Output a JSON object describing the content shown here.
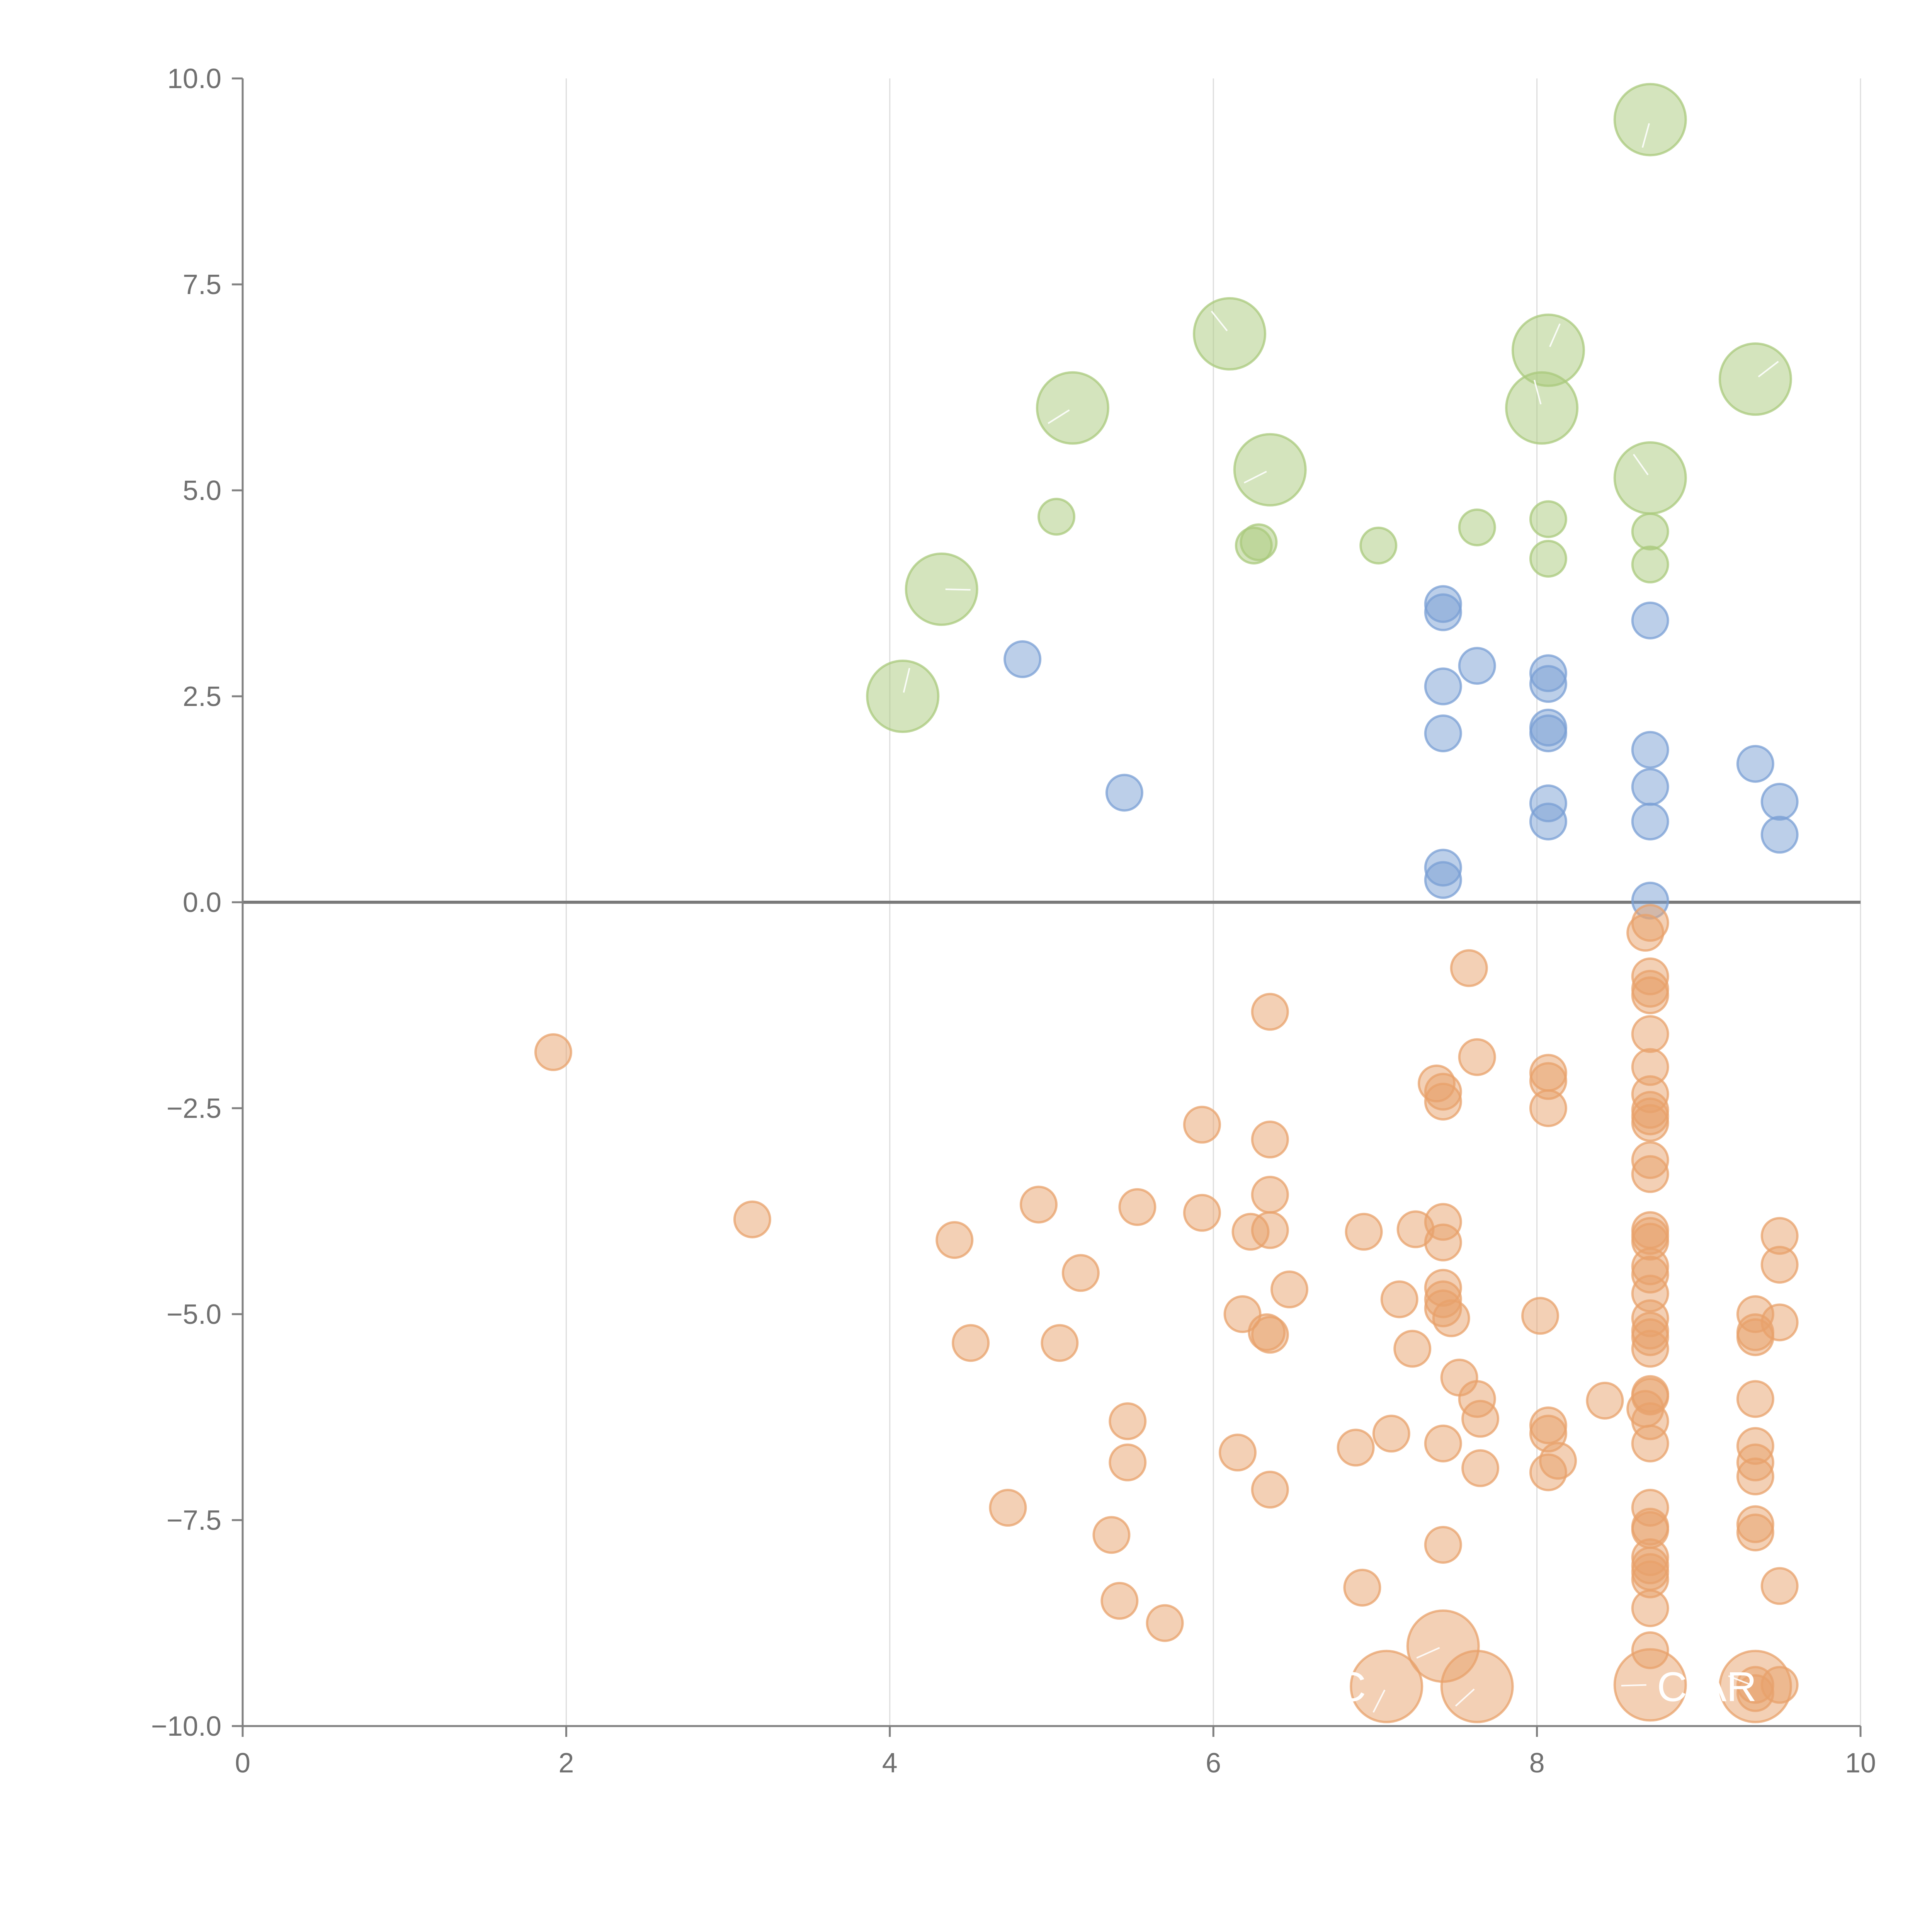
{
  "chart_data": {
    "type": "scatter",
    "title": "",
    "xlabel": "",
    "ylabel": "",
    "xlim": [
      0,
      10
    ],
    "ylim": [
      -10,
      10
    ],
    "x_ticks": [
      "0",
      "2",
      "4",
      "6",
      "8",
      "10"
    ],
    "y_ticks": [
      "10.0",
      "7.5",
      "5.0",
      "2.5",
      "0.0",
      "−2.5",
      "−5.0",
      "−7.5",
      "−10.0"
    ],
    "x_grid": true,
    "y_grid": false,
    "zero_line": true,
    "colors": {
      "green": "#a9c97c",
      "blue": "#7a9fd4",
      "orange": "#e8a26b"
    },
    "series": [
      {
        "color": "#a9c97c",
        "size_scale": "large",
        "points": [
          {
            "x": 8.7,
            "y": 9.5
          },
          {
            "x": 6.1,
            "y": 6.9
          },
          {
            "x": 8.07,
            "y": 6.7
          },
          {
            "x": 5.13,
            "y": 6.0
          },
          {
            "x": 8.03,
            "y": 6.0
          },
          {
            "x": 9.35,
            "y": 6.35
          },
          {
            "x": 6.35,
            "y": 5.25
          },
          {
            "x": 8.7,
            "y": 5.15
          },
          {
            "x": 4.32,
            "y": 3.8
          },
          {
            "x": 4.08,
            "y": 2.5
          }
        ]
      },
      {
        "color": "#a9c97c",
        "size_scale": "small",
        "points": [
          {
            "x": 5.03,
            "y": 4.68
          },
          {
            "x": 6.25,
            "y": 4.33
          },
          {
            "x": 6.28,
            "y": 4.37
          },
          {
            "x": 7.02,
            "y": 4.33
          },
          {
            "x": 7.63,
            "y": 4.55
          },
          {
            "x": 8.07,
            "y": 4.65
          },
          {
            "x": 8.07,
            "y": 4.17
          },
          {
            "x": 8.7,
            "y": 4.5
          },
          {
            "x": 8.7,
            "y": 4.1
          }
        ]
      },
      {
        "color": "#7a9fd4",
        "size_scale": "small",
        "points": [
          {
            "x": 4.82,
            "y": 2.95
          },
          {
            "x": 5.45,
            "y": 1.33
          },
          {
            "x": 7.42,
            "y": 3.62
          },
          {
            "x": 7.42,
            "y": 3.52
          },
          {
            "x": 7.42,
            "y": 2.62
          },
          {
            "x": 7.42,
            "y": 2.05
          },
          {
            "x": 7.42,
            "y": 0.42
          },
          {
            "x": 7.42,
            "y": 0.27
          },
          {
            "x": 7.63,
            "y": 2.87
          },
          {
            "x": 8.07,
            "y": 2.78
          },
          {
            "x": 8.07,
            "y": 2.65
          },
          {
            "x": 8.07,
            "y": 2.12
          },
          {
            "x": 8.07,
            "y": 2.05
          },
          {
            "x": 8.07,
            "y": 1.2
          },
          {
            "x": 8.07,
            "y": 0.98
          },
          {
            "x": 8.7,
            "y": 3.42
          },
          {
            "x": 8.7,
            "y": 1.85
          },
          {
            "x": 8.7,
            "y": 1.4
          },
          {
            "x": 8.7,
            "y": 0.98
          },
          {
            "x": 8.7,
            "y": 0.02
          },
          {
            "x": 9.35,
            "y": 1.68
          },
          {
            "x": 9.5,
            "y": 1.22
          },
          {
            "x": 9.5,
            "y": 0.82
          }
        ]
      },
      {
        "color": "#e8a26b",
        "size_scale": "small",
        "points": [
          {
            "x": 1.92,
            "y": -1.82
          },
          {
            "x": 3.15,
            "y": -3.85
          },
          {
            "x": 4.4,
            "y": -4.1
          },
          {
            "x": 4.5,
            "y": -5.35
          },
          {
            "x": 4.73,
            "y": -7.35
          },
          {
            "x": 4.92,
            "y": -3.67
          },
          {
            "x": 5.05,
            "y": -5.35
          },
          {
            "x": 5.18,
            "y": -4.5
          },
          {
            "x": 5.37,
            "y": -7.68
          },
          {
            "x": 5.42,
            "y": -8.48
          },
          {
            "x": 5.47,
            "y": -6.3
          },
          {
            "x": 5.47,
            "y": -6.8
          },
          {
            "x": 5.53,
            "y": -3.7
          },
          {
            "x": 5.7,
            "y": -8.75
          },
          {
            "x": 5.93,
            "y": -2.7
          },
          {
            "x": 5.93,
            "y": -3.77
          },
          {
            "x": 6.15,
            "y": -6.68
          },
          {
            "x": 6.18,
            "y": -5.0
          },
          {
            "x": 6.23,
            "y": -4.0
          },
          {
            "x": 6.33,
            "y": -5.22
          },
          {
            "x": 6.35,
            "y": -1.33
          },
          {
            "x": 6.35,
            "y": -2.88
          },
          {
            "x": 6.35,
            "y": -3.55
          },
          {
            "x": 6.35,
            "y": -3.98
          },
          {
            "x": 6.35,
            "y": -5.25
          },
          {
            "x": 6.35,
            "y": -7.13
          },
          {
            "x": 6.47,
            "y": -4.7
          },
          {
            "x": 6.88,
            "y": -6.62
          },
          {
            "x": 6.92,
            "y": -8.32
          },
          {
            "x": 6.93,
            "y": -4.0
          },
          {
            "x": 7.1,
            "y": -6.45
          },
          {
            "x": 7.15,
            "y": -4.82
          },
          {
            "x": 7.23,
            "y": -5.42
          },
          {
            "x": 7.25,
            "y": -3.97
          },
          {
            "x": 7.38,
            "y": -2.2
          },
          {
            "x": 7.42,
            "y": -2.3
          },
          {
            "x": 7.42,
            "y": -2.42
          },
          {
            "x": 7.42,
            "y": -3.88
          },
          {
            "x": 7.42,
            "y": -4.13
          },
          {
            "x": 7.42,
            "y": -4.68
          },
          {
            "x": 7.42,
            "y": -4.82
          },
          {
            "x": 7.42,
            "y": -4.93
          },
          {
            "x": 7.42,
            "y": -6.57
          },
          {
            "x": 7.42,
            "y": -7.8
          },
          {
            "x": 7.47,
            "y": -5.05
          },
          {
            "x": 7.52,
            "y": -5.77
          },
          {
            "x": 7.58,
            "y": -0.8
          },
          {
            "x": 7.63,
            "y": -1.88
          },
          {
            "x": 7.63,
            "y": -6.03
          },
          {
            "x": 7.65,
            "y": -6.27
          },
          {
            "x": 7.65,
            "y": -6.87
          },
          {
            "x": 8.02,
            "y": -5.02
          },
          {
            "x": 8.07,
            "y": -2.07
          },
          {
            "x": 8.07,
            "y": -2.17
          },
          {
            "x": 8.07,
            "y": -2.5
          },
          {
            "x": 8.07,
            "y": -6.35
          },
          {
            "x": 8.07,
            "y": -6.45
          },
          {
            "x": 8.07,
            "y": -6.92
          },
          {
            "x": 8.13,
            "y": -6.78
          },
          {
            "x": 8.42,
            "y": -6.05
          },
          {
            "x": 8.67,
            "y": -0.37
          },
          {
            "x": 8.7,
            "y": -0.25
          },
          {
            "x": 8.7,
            "y": -0.9
          },
          {
            "x": 8.7,
            "y": -1.05
          },
          {
            "x": 8.7,
            "y": -1.13
          },
          {
            "x": 8.7,
            "y": -1.6
          },
          {
            "x": 8.7,
            "y": -2.0
          },
          {
            "x": 8.7,
            "y": -2.33
          },
          {
            "x": 8.7,
            "y": -2.52
          },
          {
            "x": 8.7,
            "y": -2.6
          },
          {
            "x": 8.7,
            "y": -2.68
          },
          {
            "x": 8.7,
            "y": -3.13
          },
          {
            "x": 8.7,
            "y": -3.3
          },
          {
            "x": 8.7,
            "y": -3.98
          },
          {
            "x": 8.7,
            "y": -4.05
          },
          {
            "x": 8.7,
            "y": -4.12
          },
          {
            "x": 8.7,
            "y": -4.42
          },
          {
            "x": 8.7,
            "y": -4.52
          },
          {
            "x": 8.7,
            "y": -4.75
          },
          {
            "x": 8.7,
            "y": -5.05
          },
          {
            "x": 8.7,
            "y": -5.2
          },
          {
            "x": 8.7,
            "y": -5.28
          },
          {
            "x": 8.7,
            "y": -5.42
          },
          {
            "x": 8.7,
            "y": -5.97
          },
          {
            "x": 8.7,
            "y": -6.0
          },
          {
            "x": 8.67,
            "y": -6.15
          },
          {
            "x": 8.7,
            "y": -6.3
          },
          {
            "x": 8.7,
            "y": -6.57
          },
          {
            "x": 8.7,
            "y": -7.35
          },
          {
            "x": 8.7,
            "y": -7.58
          },
          {
            "x": 8.7,
            "y": -7.62
          },
          {
            "x": 8.7,
            "y": -7.95
          },
          {
            "x": 8.7,
            "y": -8.05
          },
          {
            "x": 8.7,
            "y": -8.13
          },
          {
            "x": 8.7,
            "y": -8.22
          },
          {
            "x": 8.7,
            "y": -8.57
          },
          {
            "x": 8.7,
            "y": -9.08
          },
          {
            "x": 9.35,
            "y": -5.0
          },
          {
            "x": 9.35,
            "y": -5.22
          },
          {
            "x": 9.35,
            "y": -5.28
          },
          {
            "x": 9.35,
            "y": -6.03
          },
          {
            "x": 9.35,
            "y": -6.6
          },
          {
            "x": 9.35,
            "y": -6.8
          },
          {
            "x": 9.35,
            "y": -6.97
          },
          {
            "x": 9.35,
            "y": -7.55
          },
          {
            "x": 9.35,
            "y": -7.65
          },
          {
            "x": 9.35,
            "y": -9.5
          },
          {
            "x": 9.35,
            "y": -9.6
          },
          {
            "x": 9.5,
            "y": -4.05
          },
          {
            "x": 9.5,
            "y": -4.4
          },
          {
            "x": 9.5,
            "y": -5.1
          },
          {
            "x": 9.5,
            "y": -8.3
          },
          {
            "x": 9.5,
            "y": -9.5
          }
        ]
      },
      {
        "color": "#e8a26b",
        "size_scale": "large",
        "points": [
          {
            "x": 7.42,
            "y": -9.03
          },
          {
            "x": 7.07,
            "y": -9.52
          },
          {
            "x": 7.63,
            "y": -9.52
          },
          {
            "x": 8.7,
            "y": -9.5
          },
          {
            "x": 9.35,
            "y": -9.52
          }
        ]
      }
    ],
    "annotations": [
      {
        "text": "C",
        "x": 6.85,
        "y": -9.52
      },
      {
        "text": "CIAR",
        "x": 9.05,
        "y": -9.52
      }
    ]
  }
}
